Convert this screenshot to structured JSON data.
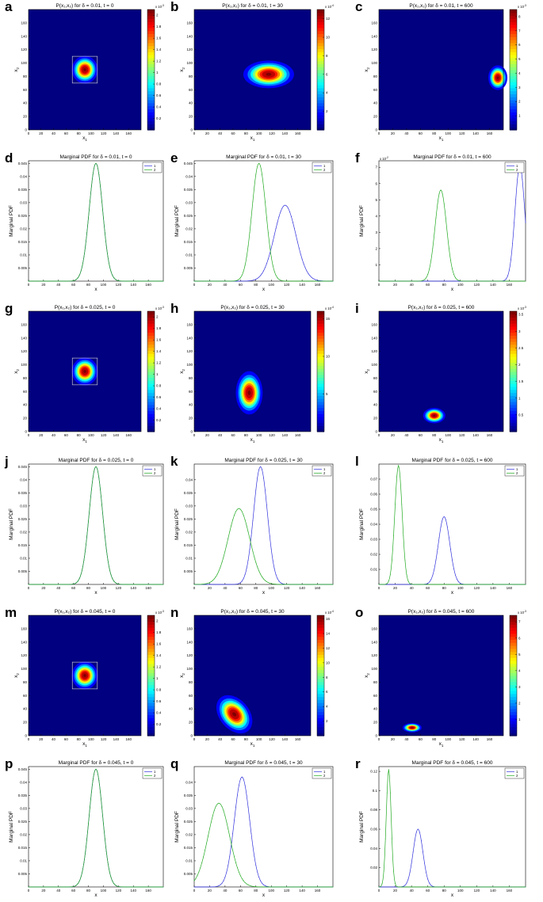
{
  "figure": {
    "x1": "x",
    "x2": "x",
    "sub1": "1",
    "sub2": "2",
    "cb_scale": "x 10"
  },
  "colors": {
    "series1": "#3333dd",
    "series2": "#22aa22",
    "axes": "#000000",
    "bg_low": "#00008f"
  },
  "chart_data": [
    {
      "id": "a",
      "type": "heatmap",
      "title": "P(x₁,x₂) for δ = 0.01, t = 0",
      "xlabel": "x₁",
      "ylabel": "x₂",
      "xticks": [
        0,
        20,
        40,
        60,
        80,
        100,
        120,
        140,
        160
      ],
      "yticks": [
        0,
        20,
        40,
        60,
        80,
        100,
        120,
        140,
        160
      ],
      "xlim": [
        0,
        180
      ],
      "ylim": [
        0,
        180
      ],
      "colorbar_ticks": [
        "0.2",
        "0.4",
        "0.6",
        "0.8",
        "1",
        "1.2",
        "1.4",
        "1.6",
        "1.8",
        "2"
      ],
      "colorbar_max": 2.1,
      "colorbar_exponent": "-3",
      "peak": {
        "x": 90,
        "y": 90,
        "sx": 9,
        "sy": 9
      },
      "box": true
    },
    {
      "id": "b",
      "type": "heatmap",
      "title": "P(x₁,x₂) for δ = 0.01, t = 30",
      "xlabel": "x₁",
      "ylabel": "x₂",
      "xticks": [
        0,
        20,
        40,
        60,
        80,
        100,
        120,
        140,
        160
      ],
      "yticks": [
        0,
        20,
        40,
        60,
        80,
        100,
        120,
        140,
        160
      ],
      "xlim": [
        0,
        180
      ],
      "ylim": [
        0,
        180
      ],
      "colorbar_ticks": [
        "2",
        "4",
        "6",
        "8",
        "10",
        "12"
      ],
      "colorbar_max": 13,
      "colorbar_exponent": "-4",
      "peak": {
        "x": 115,
        "y": 83,
        "sx": 17,
        "sy": 9
      },
      "box": false
    },
    {
      "id": "c",
      "type": "heatmap",
      "title": "P(x₁,x₂) for δ = 0.01, t = 600",
      "xlabel": "x₁",
      "ylabel": "x₂",
      "xticks": [
        0,
        20,
        40,
        60,
        80,
        100,
        120,
        140,
        160
      ],
      "yticks": [
        0,
        20,
        40,
        60,
        80,
        100,
        120,
        140,
        160
      ],
      "xlim": [
        0,
        180
      ],
      "ylim": [
        0,
        180
      ],
      "colorbar_ticks": [
        "1",
        "2",
        "3",
        "4",
        "5",
        "6",
        "7",
        "8"
      ],
      "colorbar_max": 8.5,
      "colorbar_exponent": "-3",
      "peak": {
        "x": 172,
        "y": 78,
        "sx": 6,
        "sy": 8
      },
      "box": false
    },
    {
      "id": "d",
      "type": "line",
      "title": "Marginal PDF for δ = 0.01, t = 0",
      "xlabel": "x",
      "ylabel": "Marginal PDF",
      "xticks": [
        0,
        20,
        40,
        60,
        80,
        100,
        120,
        140,
        160
      ],
      "xlim": [
        0,
        180
      ],
      "yticks": [
        "0.005",
        "0.01",
        "0.015",
        "0.02",
        "0.025",
        "0.03",
        "0.035",
        "0.04",
        "0.045"
      ],
      "ylim": [
        0,
        0.046
      ],
      "legend": [
        "1",
        "2"
      ],
      "series": [
        {
          "name": "1",
          "mu": 90,
          "sigma": 9,
          "peak": 0.045
        },
        {
          "name": "2",
          "mu": 90,
          "sigma": 9,
          "peak": 0.045
        }
      ]
    },
    {
      "id": "e",
      "type": "line",
      "title": "Marginal PDF for δ = 0.01, t = 30",
      "xlabel": "x",
      "ylabel": "Marginal PDF",
      "xticks": [
        0,
        20,
        40,
        60,
        80,
        100,
        120,
        140,
        160
      ],
      "xlim": [
        0,
        180
      ],
      "yticks": [
        "0.005",
        "0.01",
        "0.015",
        "0.02",
        "0.025",
        "0.03",
        "0.035",
        "0.04",
        "0.045"
      ],
      "ylim": [
        0,
        0.046
      ],
      "legend": [
        "1",
        "2"
      ],
      "series": [
        {
          "name": "1",
          "mu": 118,
          "sigma": 14,
          "peak": 0.029
        },
        {
          "name": "2",
          "mu": 84,
          "sigma": 9,
          "peak": 0.045
        }
      ]
    },
    {
      "id": "f",
      "type": "line",
      "title": "Marginal PDF for δ = 0.01, t = 600",
      "xlabel": "x",
      "ylabel": "Marginal PDF",
      "xticks": [
        0,
        20,
        40,
        60,
        80,
        100,
        120,
        140,
        160
      ],
      "xlim": [
        0,
        180
      ],
      "yticks": [
        "1",
        "2",
        "3",
        "4",
        "5",
        "6",
        "7"
      ],
      "ylim": [
        0,
        7.4
      ],
      "y_exponent": "-2",
      "legend": [
        "1",
        "2"
      ],
      "series": [
        {
          "name": "1",
          "mu": 173,
          "sigma": 6,
          "peak": 7.1
        },
        {
          "name": "2",
          "mu": 76,
          "sigma": 7,
          "peak": 5.6
        }
      ]
    },
    {
      "id": "g",
      "type": "heatmap",
      "title": "P(x₁,x₂) for δ = 0.025, t = 0",
      "xlabel": "x₁",
      "ylabel": "x₂",
      "xticks": [
        0,
        20,
        40,
        60,
        80,
        100,
        120,
        140,
        160
      ],
      "yticks": [
        0,
        20,
        40,
        60,
        80,
        100,
        120,
        140,
        160
      ],
      "xlim": [
        0,
        180
      ],
      "ylim": [
        0,
        180
      ],
      "colorbar_ticks": [
        "0.2",
        "0.4",
        "0.6",
        "0.8",
        "1",
        "1.2",
        "1.4",
        "1.6",
        "1.8",
        "2"
      ],
      "colorbar_max": 2.1,
      "colorbar_exponent": "-3",
      "peak": {
        "x": 90,
        "y": 90,
        "sx": 9,
        "sy": 9
      },
      "box": true
    },
    {
      "id": "h",
      "type": "heatmap",
      "title": "P(x₁,x₂) for δ = 0.025, t = 30",
      "xlabel": "x₁",
      "ylabel": "x₂",
      "xticks": [
        0,
        20,
        40,
        60,
        80,
        100,
        120,
        140,
        160
      ],
      "yticks": [
        0,
        20,
        40,
        60,
        80,
        100,
        120,
        140,
        160
      ],
      "xlim": [
        0,
        180
      ],
      "ylim": [
        0,
        180
      ],
      "colorbar_ticks": [
        "5",
        "10",
        "15"
      ],
      "colorbar_max": 16,
      "colorbar_exponent": "-4",
      "peak": {
        "x": 85,
        "y": 58,
        "sx": 9,
        "sy": 14
      },
      "box": false
    },
    {
      "id": "i",
      "type": "heatmap",
      "title": "P(x₁,x₂) for δ = 0.025, t = 600",
      "xlabel": "x₁",
      "ylabel": "x₂",
      "xticks": [
        0,
        20,
        40,
        60,
        80,
        100,
        120,
        140,
        160
      ],
      "yticks": [
        0,
        20,
        40,
        60,
        80,
        100,
        120,
        140,
        160
      ],
      "xlim": [
        0,
        180
      ],
      "ylim": [
        0,
        180
      ],
      "colorbar_ticks": [
        "0.5",
        "1",
        "1.5",
        "2",
        "2.5",
        "3",
        "3.5"
      ],
      "colorbar_max": 3.6,
      "colorbar_exponent": "-3",
      "peak": {
        "x": 80,
        "y": 24,
        "sx": 7,
        "sy": 5
      },
      "box": false
    },
    {
      "id": "j",
      "type": "line",
      "title": "Marginal PDF for δ = 0.025, t = 0",
      "xlabel": "x",
      "ylabel": "Marginal PDF",
      "xticks": [
        0,
        20,
        40,
        60,
        80,
        100,
        120,
        140,
        160
      ],
      "xlim": [
        0,
        180
      ],
      "yticks": [
        "0.005",
        "0.01",
        "0.015",
        "0.02",
        "0.025",
        "0.03",
        "0.035",
        "0.04",
        "0.045"
      ],
      "ylim": [
        0,
        0.046
      ],
      "legend": [
        "1",
        "2"
      ],
      "series": [
        {
          "name": "1",
          "mu": 90,
          "sigma": 9,
          "peak": 0.045
        },
        {
          "name": "2",
          "mu": 90,
          "sigma": 9,
          "peak": 0.045
        }
      ]
    },
    {
      "id": "k",
      "type": "line",
      "title": "Marginal PDF for δ = 0.025, t = 30",
      "xlabel": "x",
      "ylabel": "Marginal PDF",
      "xticks": [
        0,
        20,
        40,
        60,
        80,
        100,
        120,
        140,
        160
      ],
      "xlim": [
        0,
        180
      ],
      "yticks": [
        "0.005",
        "0.01",
        "0.015",
        "0.02",
        "0.025",
        "0.03",
        "0.035",
        "0.04"
      ],
      "ylim": [
        0,
        0.046
      ],
      "legend": [
        "1",
        "2"
      ],
      "series": [
        {
          "name": "1",
          "mu": 86,
          "sigma": 9,
          "peak": 0.045
        },
        {
          "name": "2",
          "mu": 58,
          "sigma": 14,
          "peak": 0.029
        }
      ]
    },
    {
      "id": "l",
      "type": "line",
      "title": "Marginal PDF for δ = 0.025, t = 600",
      "xlabel": "x",
      "ylabel": "Marginal PDF",
      "xticks": [
        0,
        20,
        40,
        60,
        80,
        100,
        120,
        140,
        160
      ],
      "xlim": [
        0,
        180
      ],
      "yticks": [
        "0.01",
        "0.02",
        "0.03",
        "0.04",
        "0.05",
        "0.06",
        "0.07"
      ],
      "ylim": [
        0,
        0.08
      ],
      "legend": [
        "1",
        "2"
      ],
      "series": [
        {
          "name": "1",
          "mu": 80,
          "sigma": 7,
          "peak": 0.045
        },
        {
          "name": "2",
          "mu": 24,
          "sigma": 4.5,
          "peak": 0.079
        }
      ]
    },
    {
      "id": "m",
      "type": "heatmap",
      "title": "P(x₁,x₂) for δ = 0.045, t = 0",
      "xlabel": "x₁",
      "ylabel": "x₂",
      "xticks": [
        0,
        20,
        40,
        60,
        80,
        100,
        120,
        140,
        160
      ],
      "yticks": [
        0,
        20,
        40,
        60,
        80,
        100,
        120,
        140,
        160
      ],
      "xlim": [
        0,
        180
      ],
      "ylim": [
        0,
        180
      ],
      "colorbar_ticks": [
        "0.2",
        "0.4",
        "0.6",
        "0.8",
        "1",
        "1.2",
        "1.4",
        "1.6",
        "1.8",
        "2"
      ],
      "colorbar_max": 2.1,
      "colorbar_exponent": "-3",
      "peak": {
        "x": 90,
        "y": 90,
        "sx": 9,
        "sy": 9
      },
      "box": true
    },
    {
      "id": "n",
      "type": "heatmap",
      "title": "P(x₁,x₂) for δ = 0.045, t = 30",
      "xlabel": "x₁",
      "ylabel": "x₂",
      "xticks": [
        0,
        20,
        40,
        60,
        80,
        100,
        120,
        140,
        160
      ],
      "yticks": [
        0,
        20,
        40,
        60,
        80,
        100,
        120,
        140,
        160
      ],
      "xlim": [
        0,
        180
      ],
      "ylim": [
        0,
        180
      ],
      "colorbar_ticks": [
        "2",
        "4",
        "6",
        "8",
        "10",
        "12",
        "14",
        "16"
      ],
      "colorbar_max": 16.5,
      "colorbar_exponent": "-4",
      "peak": {
        "x": 62,
        "y": 32,
        "sx": 10,
        "sy": 14,
        "rot": -40
      },
      "box": false
    },
    {
      "id": "o",
      "type": "heatmap",
      "title": "P(x₁,x₂) for δ = 0.045, t = 600",
      "xlabel": "x₁",
      "ylabel": "x₂",
      "xticks": [
        0,
        20,
        40,
        60,
        80,
        100,
        120,
        140,
        160
      ],
      "yticks": [
        0,
        20,
        40,
        60,
        80,
        100,
        120,
        140,
        160
      ],
      "xlim": [
        0,
        180
      ],
      "ylim": [
        0,
        180
      ],
      "colorbar_ticks": [
        "1",
        "2",
        "3",
        "4",
        "5",
        "6",
        "7"
      ],
      "colorbar_max": 7.4,
      "colorbar_exponent": "-3",
      "peak": {
        "x": 48,
        "y": 12,
        "sx": 6,
        "sy": 3
      },
      "box": false
    },
    {
      "id": "p",
      "type": "line",
      "title": "Marginal PDF for δ = 0.045, t = 0",
      "xlabel": "x",
      "ylabel": "Marginal PDF",
      "xticks": [
        0,
        20,
        40,
        60,
        80,
        100,
        120,
        140,
        160
      ],
      "xlim": [
        0,
        180
      ],
      "yticks": [
        "0.005",
        "0.01",
        "0.015",
        "0.02",
        "0.025",
        "0.03",
        "0.035",
        "0.04",
        "0.045"
      ],
      "ylim": [
        0,
        0.046
      ],
      "legend": [
        "1",
        "2"
      ],
      "series": [
        {
          "name": "1",
          "mu": 90,
          "sigma": 9,
          "peak": 0.045
        },
        {
          "name": "2",
          "mu": 90,
          "sigma": 9,
          "peak": 0.045
        }
      ]
    },
    {
      "id": "q",
      "type": "line",
      "title": "Marginal PDF for δ = 0.045, t = 30",
      "xlabel": "x",
      "ylabel": "Marginal PDF",
      "xticks": [
        0,
        20,
        40,
        60,
        80,
        100,
        120,
        140,
        160
      ],
      "xlim": [
        0,
        180
      ],
      "yticks": [
        "0.005",
        "0.01",
        "0.015",
        "0.02",
        "0.025",
        "0.03",
        "0.035",
        "0.04"
      ],
      "ylim": [
        0,
        0.046
      ],
      "legend": [
        "1",
        "2"
      ],
      "series": [
        {
          "name": "1",
          "mu": 62,
          "sigma": 10,
          "peak": 0.042
        },
        {
          "name": "2",
          "mu": 32,
          "sigma": 14,
          "peak": 0.032
        }
      ]
    },
    {
      "id": "r",
      "type": "line",
      "title": "Marginal PDF for δ = 0.045, t = 600",
      "xlabel": "x",
      "ylabel": "Marginal PDF",
      "xticks": [
        0,
        20,
        40,
        60,
        80,
        100,
        120,
        140,
        160
      ],
      "xlim": [
        0,
        180
      ],
      "yticks": [
        "0.02",
        "0.04",
        "0.06",
        "0.08",
        "0.1",
        "0.12"
      ],
      "ylim": [
        0,
        0.125
      ],
      "legend": [
        "1",
        "2"
      ],
      "series": [
        {
          "name": "1",
          "mu": 48,
          "sigma": 6,
          "peak": 0.06
        },
        {
          "name": "2",
          "mu": 12,
          "sigma": 3,
          "peak": 0.122
        }
      ]
    }
  ]
}
